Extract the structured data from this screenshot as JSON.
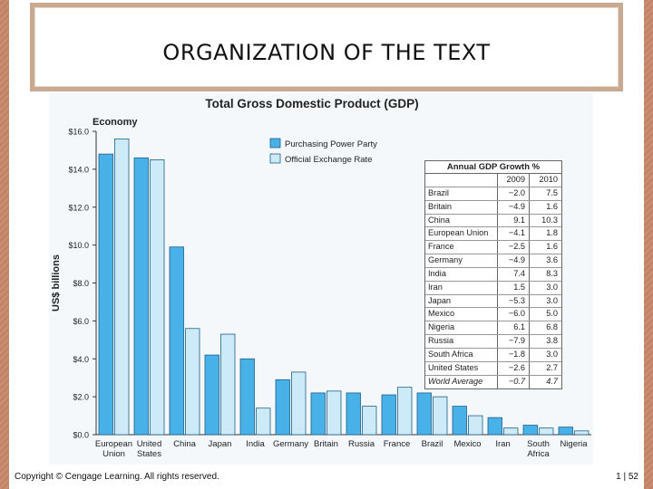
{
  "slide": {
    "title": "ORGANIZATION OF THE TEXT",
    "footer_left": "Copyright © Cengage Learning. All rights reserved.",
    "footer_right": "1 | 52"
  },
  "colors": {
    "ppp": "#48b1e8",
    "exchange": "#cdeaf8",
    "bar_edge": "#1d5f86",
    "axis": "#333333"
  },
  "chart_data": {
    "type": "bar",
    "title": "Total Gross Domestic Product (GDP)",
    "xlabel": "Economy",
    "ylabel": "US$ billions",
    "ylim": [
      0,
      16
    ],
    "yticks": [
      "$0.0",
      "$2.0",
      "$4.0",
      "$6.0",
      "$8.0",
      "$10.0",
      "$12.0",
      "$14.0",
      "$16.0"
    ],
    "categories": [
      [
        "European",
        "Union"
      ],
      [
        "United",
        "States"
      ],
      [
        "China"
      ],
      [
        "Japan"
      ],
      [
        "India"
      ],
      [
        "Germany"
      ],
      [
        "Britain"
      ],
      [
        "Russia"
      ],
      [
        "France"
      ],
      [
        "Brazil"
      ],
      [
        "Mexico"
      ],
      [
        "Iran"
      ],
      [
        "South",
        "Africa"
      ],
      [
        "Nigeria"
      ]
    ],
    "series": [
      {
        "name": "Purchasing Power Party",
        "values": [
          14.8,
          14.6,
          9.9,
          4.2,
          4.0,
          2.9,
          2.2,
          2.2,
          2.1,
          2.2,
          1.5,
          0.9,
          0.5,
          0.4
        ]
      },
      {
        "name": "Official Exchange Rate",
        "values": [
          15.6,
          14.5,
          5.6,
          5.3,
          1.4,
          3.3,
          2.3,
          1.5,
          2.5,
          2.0,
          1.0,
          0.35,
          0.35,
          0.2
        ]
      }
    ],
    "table": {
      "title": "Annual GDP Growth %",
      "columns": [
        "",
        "2009",
        "2010"
      ],
      "rows": [
        [
          "Brazil",
          "−2.0",
          "7.5"
        ],
        [
          "Britain",
          "−4.9",
          "1.6"
        ],
        [
          "China",
          "9.1",
          "10.3"
        ],
        [
          "European Union",
          "−4.1",
          "1.8"
        ],
        [
          "France",
          "−2.5",
          "1.6"
        ],
        [
          "Germany",
          "−4.9",
          "3.6"
        ],
        [
          "India",
          "7.4",
          "8.3"
        ],
        [
          "Iran",
          "1.5",
          "3.0"
        ],
        [
          "Japan",
          "−5.3",
          "3.0"
        ],
        [
          "Mexico",
          "−6.0",
          "5.0"
        ],
        [
          "Nigeria",
          "6.1",
          "6.8"
        ],
        [
          "Russia",
          "−7.9",
          "3.8"
        ],
        [
          "South Africa",
          "−1.8",
          "3.0"
        ],
        [
          "United States",
          "−2.6",
          "2.7"
        ],
        [
          "World Average",
          "−0.7",
          "4.7"
        ]
      ]
    }
  }
}
